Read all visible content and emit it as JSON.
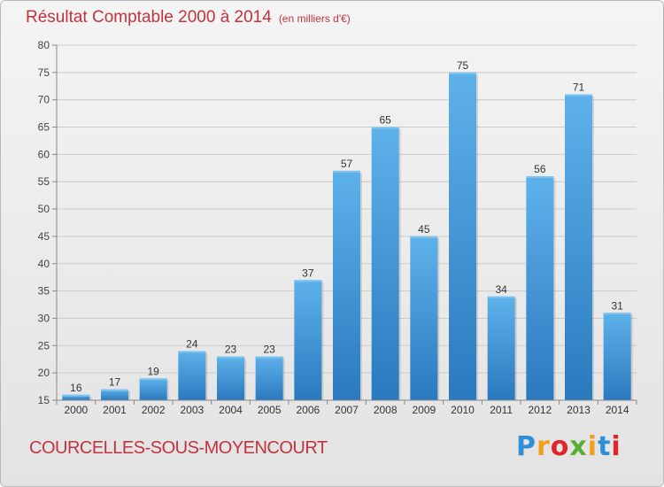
{
  "header": {
    "title": "Résultat Comptable 2000 à 2014",
    "subtitle": "(en milliers d'€)"
  },
  "footer": {
    "commune": "COURCELLES-SOUS-MOYENCOURT",
    "logo": "Proxiti"
  },
  "colors": {
    "title": "#c3333f",
    "bar_light": "#5eb2ea",
    "bar_dark": "#2a79bf",
    "grid": "#cccccc"
  },
  "chart_data": {
    "type": "bar",
    "title": "Résultat Comptable 2000 à 2014",
    "subtitle": "(en milliers d'€)",
    "xlabel": "",
    "ylabel": "",
    "categories": [
      "2000",
      "2001",
      "2002",
      "2003",
      "2004",
      "2005",
      "2006",
      "2007",
      "2008",
      "2009",
      "2010",
      "2011",
      "2012",
      "2013",
      "2014"
    ],
    "values": [
      16,
      17,
      19,
      24,
      23,
      23,
      37,
      57,
      65,
      45,
      75,
      34,
      56,
      71,
      31
    ],
    "ylim": [
      15,
      80
    ],
    "yticks": [
      15,
      20,
      25,
      30,
      35,
      40,
      45,
      50,
      55,
      60,
      65,
      70,
      75,
      80
    ],
    "grid": true
  }
}
